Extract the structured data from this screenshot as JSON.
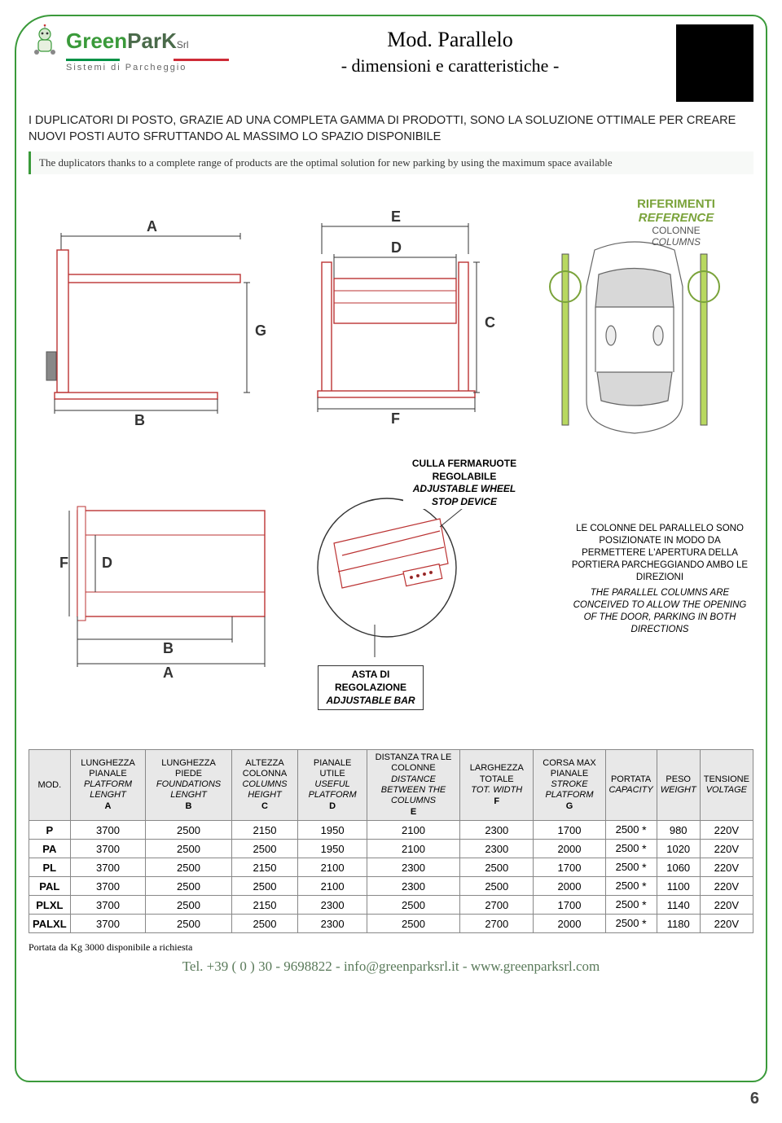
{
  "logo": {
    "brand_green": "Green",
    "brand_dark": "ParK",
    "srl": "Srl",
    "tagline": "Sistemi di Parcheggio"
  },
  "title": {
    "main": "Mod. Parallelo",
    "sub": "- dimensioni e caratteristiche -"
  },
  "intro_it": "I DUPLICATORI DI POSTO, GRAZIE AD UNA COMPLETA GAMMA DI PRODOTTI, SONO LA SOLUZIONE OTTIMALE PER CREARE NUOVI POSTI AUTO SFRUTTANDO AL MASSIMO LO SPAZIO DISPONIBILE",
  "intro_en": "The duplicators thanks to a complete range of products are the optimal solution for new parking by using the maximum space available",
  "diagram": {
    "dims": {
      "A": "A",
      "B": "B",
      "C": "C",
      "D": "D",
      "E": "E",
      "F": "F",
      "G": "G"
    },
    "ref_title_it": "RIFERIMENTI",
    "ref_title_en": "REFERENCE",
    "ref_col_it": "COLONNE",
    "ref_col_en": "COLUMNS",
    "annot_culla_it": "CULLA FERMARUOTE REGOLABILE",
    "annot_culla_en": "ADJUSTABLE WHEEL STOP DEVICE",
    "annot_asta_it": "ASTA DI REGOLAZIONE",
    "annot_asta_en": "ADJUSTABLE BAR",
    "para_note_it": "LE COLONNE DEL PARALLELO SONO POSIZIONATE IN MODO DA PERMETTERE L'APERTURA DELLA PORTIERA PARCHEGGIANDO AMBO LE DIREZIONI",
    "para_note_en": "THE PARALLEL COLUMNS ARE CONCEIVED TO ALLOW THE OPENING OF THE DOOR, PARKING IN BOTH DIRECTIONS"
  },
  "table": {
    "headers": [
      {
        "it": "MOD.",
        "en": "",
        "let": ""
      },
      {
        "it": "LUNGHEZZA PIANALE",
        "en": "PLATFORM LENGHT",
        "let": "A"
      },
      {
        "it": "LUNGHEZZA PIEDE",
        "en": "FOUNDATIONS LENGHT",
        "let": "B"
      },
      {
        "it": "ALTEZZA COLONNA",
        "en": "COLUMNS HEIGHT",
        "let": "C"
      },
      {
        "it": "PIANALE UTILE",
        "en": "USEFUL PLATFORM",
        "let": "D"
      },
      {
        "it": "DISTANZA TRA LE COLONNE",
        "en": "DISTANCE BETWEEN THE COLUMNS",
        "let": "E"
      },
      {
        "it": "LARGHEZZA TOTALE",
        "en": "TOT. WIDTH",
        "let": "F"
      },
      {
        "it": "CORSA MAX PIANALE",
        "en": "STROKE PLATFORM",
        "let": "G"
      },
      {
        "it": "PORTATA",
        "en": "CAPACITY",
        "let": ""
      },
      {
        "it": "PESO",
        "en": "WEIGHT",
        "let": ""
      },
      {
        "it": "TENSIONE",
        "en": "VOLTAGE",
        "let": ""
      }
    ],
    "rows": [
      {
        "mod": "P",
        "vals": [
          "3700",
          "2500",
          "2150",
          "1950",
          "2100",
          "2300",
          "1700",
          "2500 *",
          "980",
          "220V"
        ]
      },
      {
        "mod": "PA",
        "vals": [
          "3700",
          "2500",
          "2500",
          "1950",
          "2100",
          "2300",
          "2000",
          "2500 *",
          "1020",
          "220V"
        ]
      },
      {
        "mod": "PL",
        "vals": [
          "3700",
          "2500",
          "2150",
          "2100",
          "2300",
          "2500",
          "1700",
          "2500 *",
          "1060",
          "220V"
        ]
      },
      {
        "mod": "PAL",
        "vals": [
          "3700",
          "2500",
          "2500",
          "2100",
          "2300",
          "2500",
          "2000",
          "2500 *",
          "1100",
          "220V"
        ]
      },
      {
        "mod": "PLXL",
        "vals": [
          "3700",
          "2500",
          "2150",
          "2300",
          "2500",
          "2700",
          "1700",
          "2500 *",
          "1140",
          "220V"
        ]
      },
      {
        "mod": "PALXL",
        "vals": [
          "3700",
          "2500",
          "2500",
          "2300",
          "2500",
          "2700",
          "2000",
          "2500 *",
          "1180",
          "220V"
        ]
      }
    ]
  },
  "footnote": "Portata da Kg 3000 disponibile a richiesta",
  "footer": {
    "tel": "Tel. +39 ( 0 ) 30 - 9698822",
    "sep1": "   -   ",
    "email": "info@greenparksrl.it",
    "sep2": "   -   ",
    "web": "www.greenparksrl.com"
  },
  "page_num": "6",
  "colors": {
    "green": "#3a9a3a",
    "accent": "#7aa33a"
  }
}
